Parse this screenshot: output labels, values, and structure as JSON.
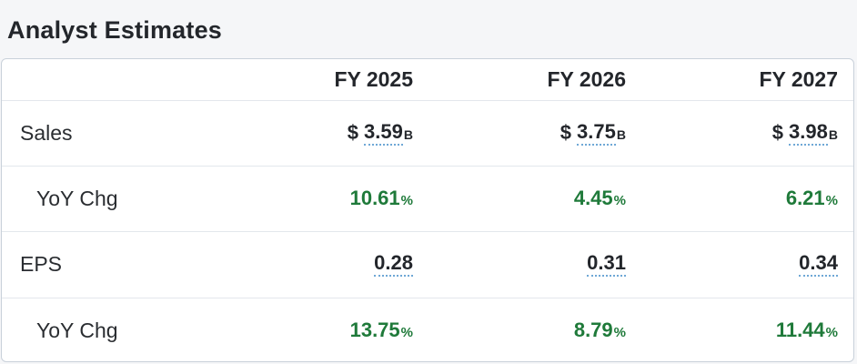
{
  "title": "Analyst Estimates",
  "columns": [
    "FY 2025",
    "FY 2026",
    "FY 2027"
  ],
  "rows": {
    "sales": {
      "label": "Sales",
      "currency": "$",
      "unit": "B",
      "values": [
        "3.59",
        "3.75",
        "3.98"
      ]
    },
    "sales_yoy": {
      "label": "YoY Chg",
      "unit": "%",
      "values": [
        "10.61",
        "4.45",
        "6.21"
      ]
    },
    "eps": {
      "label": "EPS",
      "values": [
        "0.28",
        "0.31",
        "0.34"
      ]
    },
    "eps_yoy": {
      "label": "YoY Chg",
      "unit": "%",
      "values": [
        "13.75",
        "8.79",
        "11.44"
      ]
    }
  },
  "colors": {
    "positive": "#1f7a3a",
    "link_underline": "#6fa8d6",
    "border": "#c9d1da"
  }
}
